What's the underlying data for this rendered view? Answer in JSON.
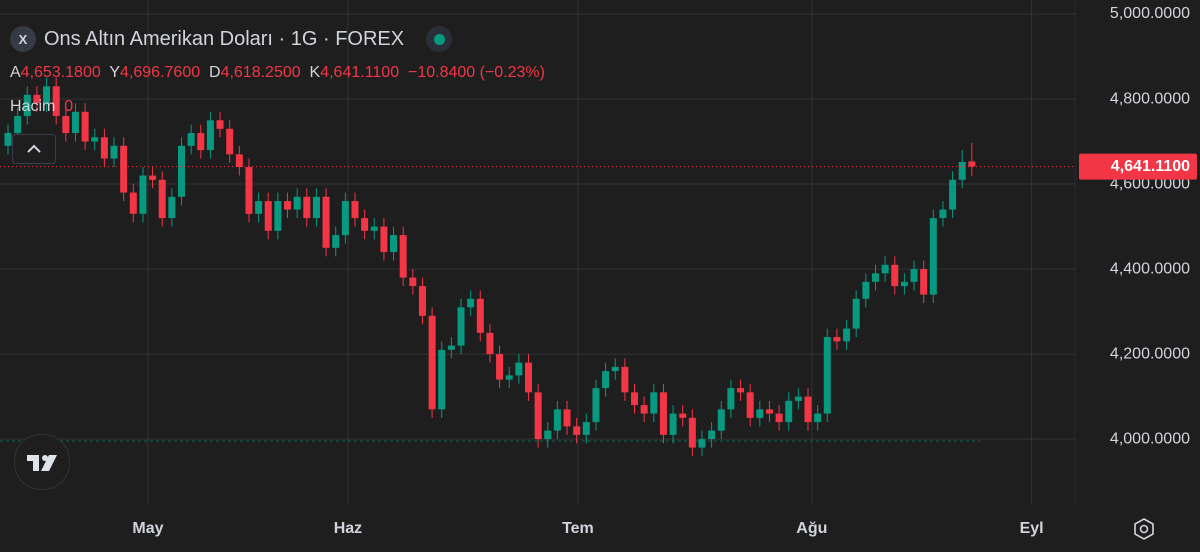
{
  "chart_data": {
    "type": "candlestick",
    "title": "Ons Altın Amerikan Doları · 1G · FOREX",
    "symbol_badge": "X",
    "ohlc_legend": {
      "open_key": "A",
      "open": "4,653.1800",
      "high_key": "Y",
      "high": "4,696.7600",
      "low_key": "D",
      "low": "4,618.2500",
      "close_key": "K",
      "close": "4,641.1100",
      "change": "−10.8400 (−0.23%)"
    },
    "volume_label": "Hacim",
    "volume_value": "0",
    "last_price_label": "4,641.1100",
    "up_color": "#089981",
    "down_color": "#f23645",
    "grid": true,
    "open": [
      4690,
      4720,
      4760,
      4810,
      4790,
      4830,
      4760,
      4720,
      4770,
      4700,
      4710,
      4660,
      4690,
      4580,
      4530,
      4620,
      4610,
      4520,
      4570,
      4690,
      4720,
      4680,
      4750,
      4730,
      4670,
      4640,
      4530,
      4560,
      4490,
      4560,
      4540,
      4570,
      4520,
      4570,
      4450,
      4480,
      4560,
      4520,
      4490,
      4500,
      4440,
      4480,
      4380,
      4360,
      4290,
      4070,
      4210,
      4220,
      4310,
      4330,
      4250,
      4200,
      4140,
      4150,
      4180,
      4110,
      4000,
      4020,
      4070,
      4030,
      4010,
      4040,
      4120,
      4160,
      4170,
      4110,
      4080,
      4060,
      4110,
      4010,
      4060,
      4050,
      3980,
      4000,
      4020,
      4070,
      4120,
      4110,
      4050,
      4070,
      4060,
      4040,
      4090,
      4100,
      4040,
      4060,
      4240,
      4230,
      4260,
      4330,
      4370,
      4390,
      4410,
      4360,
      4370,
      4400,
      4340,
      4520,
      4540,
      4610,
      4653.18
    ],
    "high": [
      4740,
      4780,
      4830,
      4830,
      4850,
      4850,
      4780,
      4790,
      4790,
      4730,
      4730,
      4710,
      4710,
      4600,
      4640,
      4640,
      4630,
      4590,
      4710,
      4740,
      4740,
      4770,
      4770,
      4750,
      4690,
      4660,
      4580,
      4580,
      4580,
      4580,
      4590,
      4590,
      4590,
      4590,
      4500,
      4580,
      4580,
      4540,
      4520,
      4520,
      4500,
      4500,
      4400,
      4380,
      4310,
      4230,
      4240,
      4330,
      4350,
      4350,
      4270,
      4220,
      4170,
      4200,
      4200,
      4130,
      4040,
      4090,
      4090,
      4050,
      4060,
      4140,
      4180,
      4190,
      4190,
      4130,
      4100,
      4130,
      4130,
      4080,
      4080,
      4070,
      4020,
      4040,
      4090,
      4140,
      4140,
      4130,
      4090,
      4090,
      4080,
      4110,
      4120,
      4120,
      4080,
      4260,
      4260,
      4280,
      4350,
      4390,
      4410,
      4430,
      4430,
      4390,
      4420,
      4420,
      4540,
      4560,
      4630,
      4680,
      4696.76
    ],
    "low": [
      4670,
      4700,
      4740,
      4770,
      4770,
      4740,
      4700,
      4700,
      4680,
      4680,
      4640,
      4640,
      4560,
      4510,
      4510,
      4590,
      4500,
      4500,
      4550,
      4670,
      4660,
      4660,
      4710,
      4650,
      4620,
      4510,
      4510,
      4470,
      4470,
      4520,
      4520,
      4500,
      4500,
      4430,
      4430,
      4460,
      4500,
      4470,
      4470,
      4420,
      4420,
      4360,
      4340,
      4270,
      4050,
      4050,
      4190,
      4200,
      4290,
      4230,
      4180,
      4120,
      4120,
      4130,
      4090,
      3980,
      3980,
      4000,
      4010,
      3990,
      3990,
      4020,
      4100,
      4140,
      4090,
      4060,
      4040,
      4040,
      3990,
      3990,
      4030,
      3960,
      3960,
      3980,
      4000,
      4050,
      4090,
      4030,
      4030,
      4040,
      4020,
      4020,
      4070,
      4020,
      4020,
      4040,
      4210,
      4210,
      4240,
      4310,
      4350,
      4370,
      4340,
      4340,
      4350,
      4320,
      4320,
      4500,
      4520,
      4590,
      4618.25
    ],
    "close": [
      4720,
      4760,
      4810,
      4790,
      4830,
      4760,
      4720,
      4770,
      4700,
      4710,
      4660,
      4690,
      4580,
      4530,
      4620,
      4610,
      4520,
      4570,
      4690,
      4720,
      4680,
      4750,
      4730,
      4670,
      4640,
      4530,
      4560,
      4490,
      4560,
      4540,
      4570,
      4520,
      4570,
      4450,
      4480,
      4560,
      4520,
      4490,
      4500,
      4440,
      4480,
      4380,
      4360,
      4290,
      4070,
      4210,
      4220,
      4310,
      4330,
      4250,
      4200,
      4140,
      4150,
      4180,
      4110,
      4000,
      4020,
      4070,
      4030,
      4010,
      4040,
      4120,
      4160,
      4170,
      4110,
      4080,
      4060,
      4110,
      4010,
      4060,
      4050,
      3980,
      4000,
      4020,
      4070,
      4120,
      4110,
      4050,
      4070,
      4060,
      4040,
      4090,
      4100,
      4040,
      4060,
      4240,
      4230,
      4260,
      4330,
      4370,
      4390,
      4410,
      4360,
      4370,
      4400,
      4340,
      4520,
      4540,
      4610,
      4651.95,
      4641.11
    ],
    "xlim": [
      -0.83,
      110.7
    ],
    "xticks": [
      {
        "value": 14.52,
        "label": "May"
      },
      {
        "value": 35.27,
        "label": "Haz"
      },
      {
        "value": 59.13,
        "label": "Tem"
      },
      {
        "value": 83.4,
        "label": "Ağu"
      },
      {
        "value": 106.2,
        "label": "Eyl"
      }
    ],
    "ylim": [
      3845,
      5033
    ],
    "yticks": [
      {
        "value": 4000,
        "label": "4,000.0000"
      },
      {
        "value": 4200,
        "label": "4,200.0000"
      },
      {
        "value": 4400,
        "label": "4,400.0000"
      },
      {
        "value": 4600,
        "label": "4,600.0000"
      },
      {
        "value": 4800,
        "label": "4,800.0000"
      },
      {
        "value": 5000,
        "label": "5,000.0000"
      }
    ]
  }
}
